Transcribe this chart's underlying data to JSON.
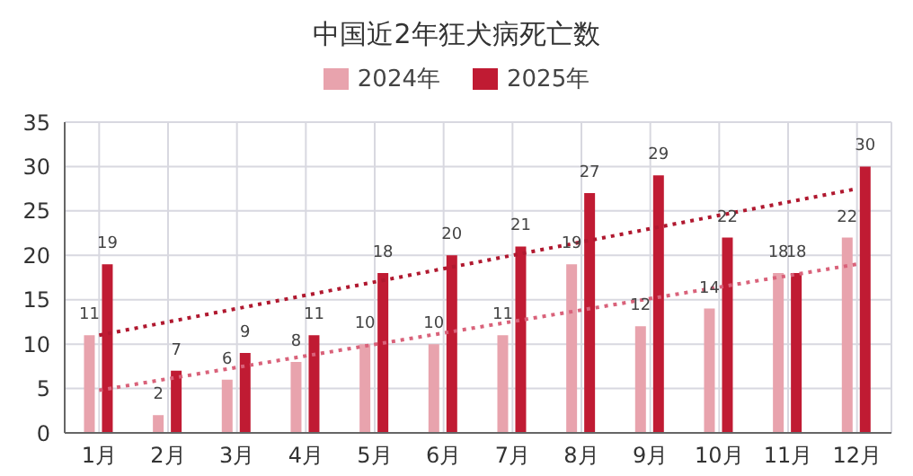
{
  "chart_data": {
    "type": "bar",
    "title": "中国近2年狂犬病死亡数",
    "categories": [
      "1月",
      "2月",
      "3月",
      "4月",
      "5月",
      "6月",
      "7月",
      "8月",
      "9月",
      "10月",
      "11月",
      "12月"
    ],
    "series": [
      {
        "name": "2024年",
        "color": "#e8a3ad",
        "values": [
          11,
          2,
          6,
          8,
          10,
          10,
          11,
          19,
          12,
          14,
          18,
          22
        ],
        "value_labels": [
          "11",
          "2",
          "6",
          "8",
          "10",
          "10",
          "11",
          "19",
          "12",
          "14",
          "18",
          "22"
        ]
      },
      {
        "name": "2025年",
        "color": "#c01b33",
        "values": [
          19,
          7,
          9,
          11,
          18,
          20,
          21,
          27,
          29,
          22,
          18,
          30
        ],
        "value_labels": [
          "19",
          "7",
          "9",
          "11",
          "18",
          "20",
          "21",
          "27",
          "29",
          "22",
          "18",
          "30"
        ]
      },
      {
        "type": "line",
        "color": "#d9627a",
        "line_style": "dotted",
        "marker": "none",
        "x": [
          "1月",
          "12月"
        ],
        "values": [
          4.8,
          19.0
        ]
      },
      {
        "type": "line",
        "color": "#b0182f",
        "line_style": "dotted",
        "marker": "none",
        "x": [
          "1月",
          "12月"
        ],
        "values": [
          11.0,
          27.5
        ]
      }
    ],
    "ylim": [
      0,
      35
    ],
    "yticks": [
      0,
      5,
      10,
      15,
      20,
      25,
      30,
      35
    ],
    "grid": true,
    "legend": "top"
  }
}
